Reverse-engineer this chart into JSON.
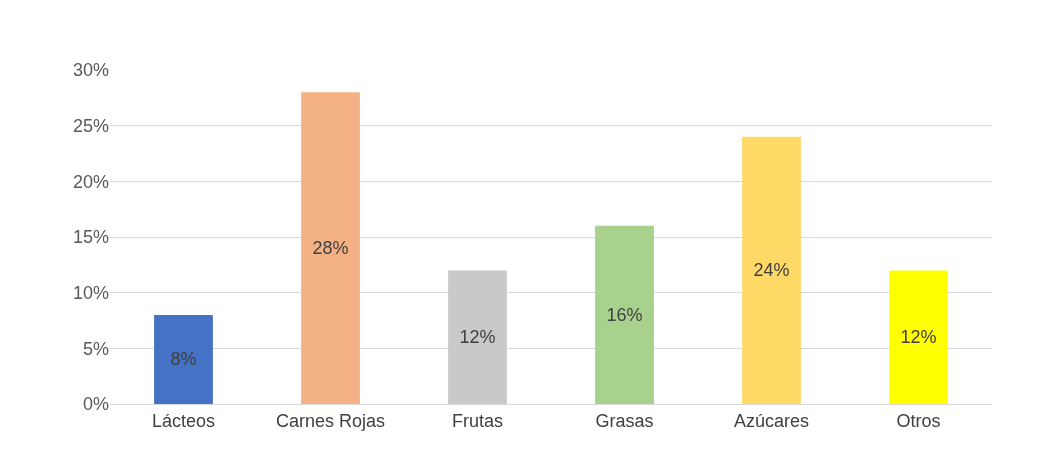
{
  "chart_data": {
    "type": "bar",
    "categories": [
      "Lácteos",
      "Carnes Rojas",
      "Frutas",
      "Grasas",
      "Azúcares",
      "Otros"
    ],
    "values": [
      8,
      28,
      12,
      16,
      24,
      12
    ],
    "colors": [
      "#4472c4",
      "#f4b183",
      "#c9c9c9",
      "#a9d18e",
      "#ffd966",
      "#ffff00"
    ],
    "value_labels": [
      "8%",
      "28%",
      "12%",
      "16%",
      "24%",
      "12%"
    ],
    "ylim": [
      0,
      30
    ],
    "yticks": [
      {
        "value": 0,
        "label": "0%"
      },
      {
        "value": 5,
        "label": "5%"
      },
      {
        "value": 10,
        "label": "10%"
      },
      {
        "value": 15,
        "label": "15%"
      },
      {
        "value": 20,
        "label": "20%"
      },
      {
        "value": 25,
        "label": "25%"
      },
      {
        "value": 30,
        "label": "30%"
      }
    ],
    "grid": "y"
  }
}
